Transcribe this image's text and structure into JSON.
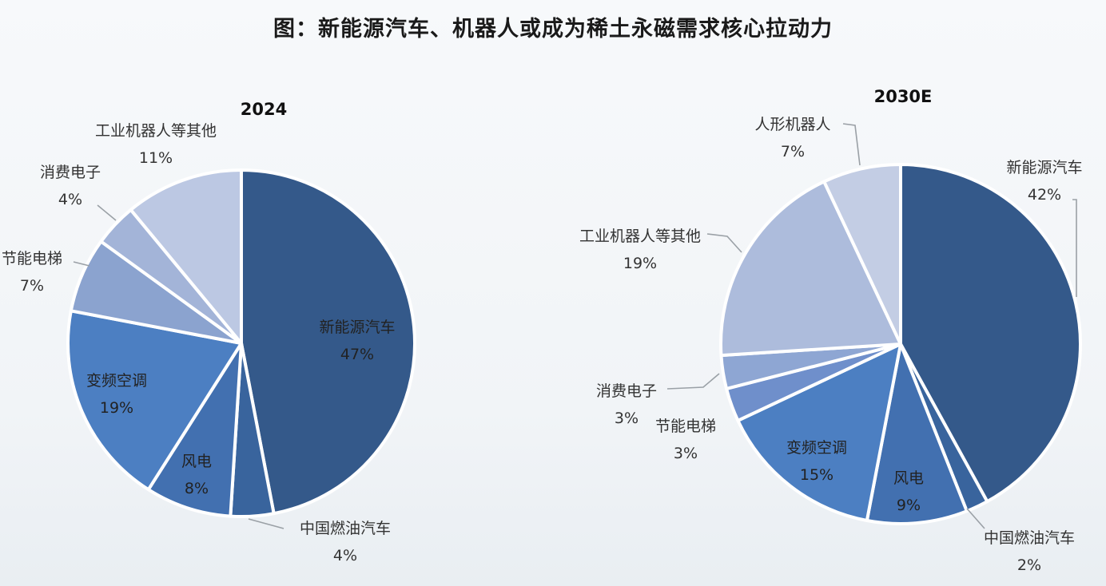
{
  "title": "图：新能源汽车、机器人或成为稀土永磁需求核心拉动力",
  "chart_data": [
    {
      "type": "pie",
      "title": "2024",
      "slices": [
        {
          "label": "新能源汽车",
          "value": 47,
          "display": "47%",
          "color": "#34598a"
        },
        {
          "label": "中国燃油汽车",
          "value": 4,
          "display": "4%",
          "color": "#39649d"
        },
        {
          "label": "风电",
          "value": 8,
          "display": "8%",
          "color": "#4270b0"
        },
        {
          "label": "变频空调",
          "value": 19,
          "display": "19%",
          "color": "#4c7fc2"
        },
        {
          "label": "节能电梯",
          "value": 7,
          "display": "7%",
          "color": "#8ba3cf"
        },
        {
          "label": "消费电子",
          "value": 4,
          "display": "4%",
          "color": "#a3b4d8"
        },
        {
          "label": "工业机器人等其他",
          "value": 11,
          "display": "11%",
          "color": "#bcc8e3"
        }
      ]
    },
    {
      "type": "pie",
      "title": "2030E",
      "slices": [
        {
          "label": "新能源汽车",
          "value": 42,
          "display": "42%",
          "color": "#34598a"
        },
        {
          "label": "中国燃油汽车",
          "value": 2,
          "display": "2%",
          "color": "#39649d"
        },
        {
          "label": "风电",
          "value": 9,
          "display": "9%",
          "color": "#4270b0"
        },
        {
          "label": "变频空调",
          "value": 15,
          "display": "15%",
          "color": "#4c7fc2"
        },
        {
          "label": "节能电梯",
          "value": 3,
          "display": "3%",
          "color": "#6f8fcb"
        },
        {
          "label": "消费电子",
          "value": 3,
          "display": "3%",
          "color": "#8ea6d3"
        },
        {
          "label": "工业机器人等其他",
          "value": 19,
          "display": "19%",
          "color": "#adbcdc"
        },
        {
          "label": "人形机器人",
          "value": 7,
          "display": "7%",
          "color": "#c3cde4"
        }
      ]
    }
  ]
}
